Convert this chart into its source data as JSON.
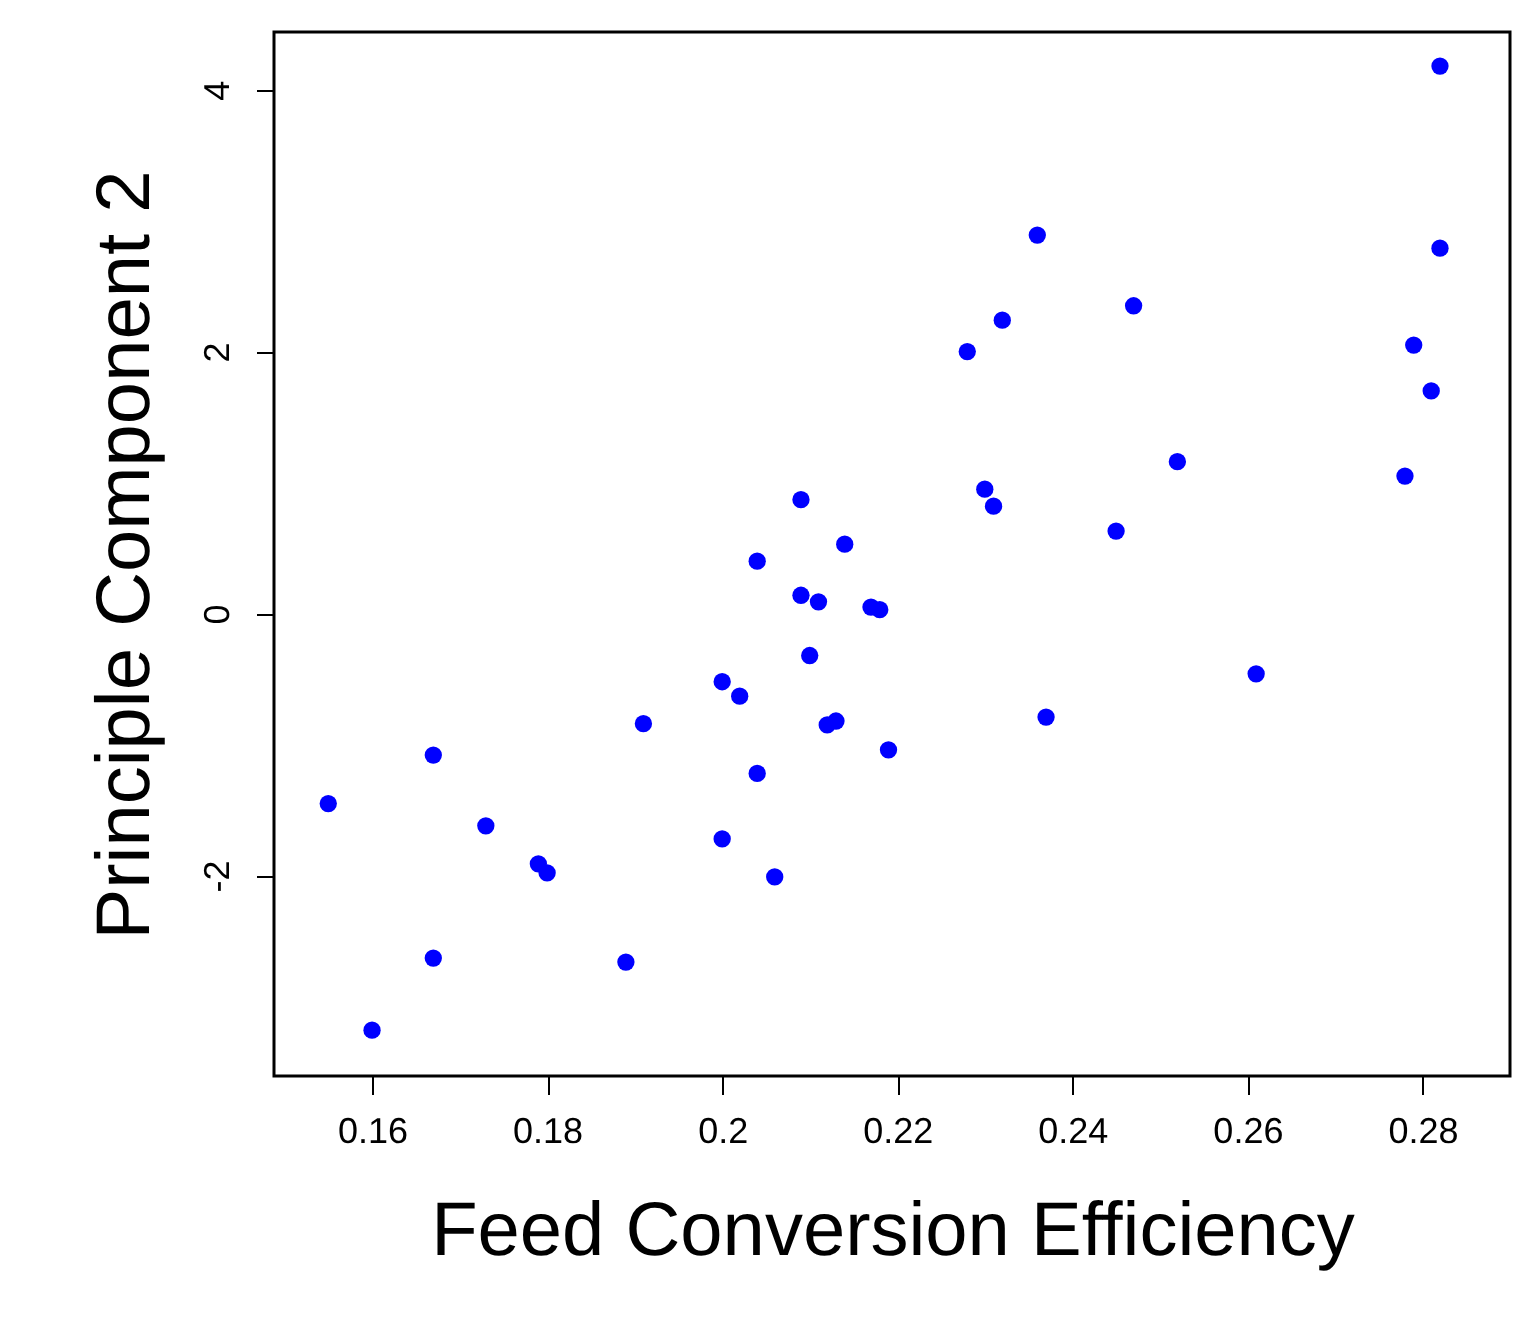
{
  "chart_data": {
    "type": "scatter",
    "xlabel": "Feed Conversion Efficiency",
    "ylabel": "Principle Component 2",
    "xlim": [
      0.1488,
      0.29
    ],
    "ylim": [
      -3.53,
      4.44
    ],
    "xticks": [
      0.16,
      0.18,
      0.2,
      0.22,
      0.24,
      0.26,
      0.28
    ],
    "yticks": [
      {
        "value": -2,
        "label": "-2"
      },
      {
        "value": 0,
        "label": "0"
      },
      {
        "value": 2,
        "label": "2"
      },
      {
        "value": 4,
        "label": "4"
      }
    ],
    "grid": false,
    "marker": "circle",
    "x": [
      0.155,
      0.16,
      0.167,
      0.167,
      0.173,
      0.179,
      0.18,
      0.189,
      0.191,
      0.2,
      0.2,
      0.202,
      0.204,
      0.204,
      0.206,
      0.209,
      0.209,
      0.21,
      0.211,
      0.212,
      0.213,
      0.214,
      0.217,
      0.218,
      0.219,
      0.228,
      0.23,
      0.231,
      0.232,
      0.236,
      0.237,
      0.245,
      0.247,
      0.252,
      0.261,
      0.278,
      0.279,
      0.281,
      0.282,
      0.282
    ],
    "series": [
      {
        "color": "#0000ff",
        "values": [
          -1.45,
          -3.18,
          -1.08,
          -2.63,
          -1.62,
          -1.91,
          -1.98,
          -2.66,
          -0.84,
          -1.72,
          -0.52,
          -0.63,
          0.4,
          -1.22,
          -2.01,
          0.14,
          0.87,
          -0.32,
          0.09,
          -0.85,
          -0.82,
          0.53,
          0.05,
          0.03,
          -1.04,
          2.0,
          0.95,
          0.82,
          2.24,
          2.89,
          -0.79,
          0.63,
          2.35,
          1.16,
          -0.46,
          1.05,
          2.05,
          1.7,
          2.79,
          4.18
        ]
      }
    ]
  }
}
